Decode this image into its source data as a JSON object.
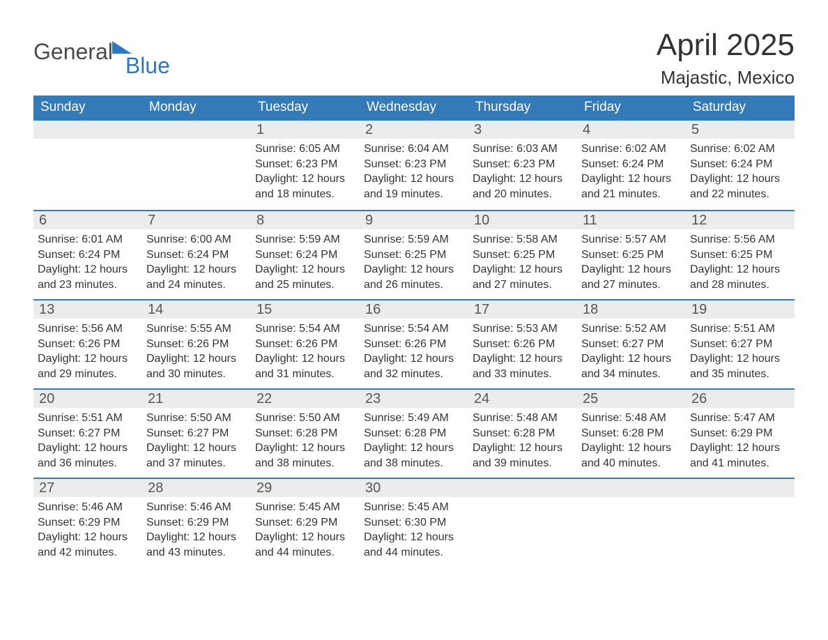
{
  "logo": {
    "text1": "General",
    "text2": "Blue",
    "icon_color": "#2f78bf"
  },
  "title": "April 2025",
  "subtitle": "Majastic, Mexico",
  "colors": {
    "header_bg": "#337ab7",
    "header_text": "#ffffff",
    "week_separator": "#337ab7",
    "daynum_bg": "#ececec",
    "body_text": "#333333",
    "logo_gray": "#4a4a4a",
    "logo_blue": "#2f78bf"
  },
  "day_headers": [
    "Sunday",
    "Monday",
    "Tuesday",
    "Wednesday",
    "Thursday",
    "Friday",
    "Saturday"
  ],
  "weeks": [
    [
      {
        "num": "",
        "sunrise": "",
        "sunset": "",
        "daylight": ""
      },
      {
        "num": "",
        "sunrise": "",
        "sunset": "",
        "daylight": ""
      },
      {
        "num": "1",
        "sunrise": "Sunrise: 6:05 AM",
        "sunset": "Sunset: 6:23 PM",
        "daylight": "Daylight: 12 hours and 18 minutes."
      },
      {
        "num": "2",
        "sunrise": "Sunrise: 6:04 AM",
        "sunset": "Sunset: 6:23 PM",
        "daylight": "Daylight: 12 hours and 19 minutes."
      },
      {
        "num": "3",
        "sunrise": "Sunrise: 6:03 AM",
        "sunset": "Sunset: 6:23 PM",
        "daylight": "Daylight: 12 hours and 20 minutes."
      },
      {
        "num": "4",
        "sunrise": "Sunrise: 6:02 AM",
        "sunset": "Sunset: 6:24 PM",
        "daylight": "Daylight: 12 hours and 21 minutes."
      },
      {
        "num": "5",
        "sunrise": "Sunrise: 6:02 AM",
        "sunset": "Sunset: 6:24 PM",
        "daylight": "Daylight: 12 hours and 22 minutes."
      }
    ],
    [
      {
        "num": "6",
        "sunrise": "Sunrise: 6:01 AM",
        "sunset": "Sunset: 6:24 PM",
        "daylight": "Daylight: 12 hours and 23 minutes."
      },
      {
        "num": "7",
        "sunrise": "Sunrise: 6:00 AM",
        "sunset": "Sunset: 6:24 PM",
        "daylight": "Daylight: 12 hours and 24 minutes."
      },
      {
        "num": "8",
        "sunrise": "Sunrise: 5:59 AM",
        "sunset": "Sunset: 6:24 PM",
        "daylight": "Daylight: 12 hours and 25 minutes."
      },
      {
        "num": "9",
        "sunrise": "Sunrise: 5:59 AM",
        "sunset": "Sunset: 6:25 PM",
        "daylight": "Daylight: 12 hours and 26 minutes."
      },
      {
        "num": "10",
        "sunrise": "Sunrise: 5:58 AM",
        "sunset": "Sunset: 6:25 PM",
        "daylight": "Daylight: 12 hours and 27 minutes."
      },
      {
        "num": "11",
        "sunrise": "Sunrise: 5:57 AM",
        "sunset": "Sunset: 6:25 PM",
        "daylight": "Daylight: 12 hours and 27 minutes."
      },
      {
        "num": "12",
        "sunrise": "Sunrise: 5:56 AM",
        "sunset": "Sunset: 6:25 PM",
        "daylight": "Daylight: 12 hours and 28 minutes."
      }
    ],
    [
      {
        "num": "13",
        "sunrise": "Sunrise: 5:56 AM",
        "sunset": "Sunset: 6:26 PM",
        "daylight": "Daylight: 12 hours and 29 minutes."
      },
      {
        "num": "14",
        "sunrise": "Sunrise: 5:55 AM",
        "sunset": "Sunset: 6:26 PM",
        "daylight": "Daylight: 12 hours and 30 minutes."
      },
      {
        "num": "15",
        "sunrise": "Sunrise: 5:54 AM",
        "sunset": "Sunset: 6:26 PM",
        "daylight": "Daylight: 12 hours and 31 minutes."
      },
      {
        "num": "16",
        "sunrise": "Sunrise: 5:54 AM",
        "sunset": "Sunset: 6:26 PM",
        "daylight": "Daylight: 12 hours and 32 minutes."
      },
      {
        "num": "17",
        "sunrise": "Sunrise: 5:53 AM",
        "sunset": "Sunset: 6:26 PM",
        "daylight": "Daylight: 12 hours and 33 minutes."
      },
      {
        "num": "18",
        "sunrise": "Sunrise: 5:52 AM",
        "sunset": "Sunset: 6:27 PM",
        "daylight": "Daylight: 12 hours and 34 minutes."
      },
      {
        "num": "19",
        "sunrise": "Sunrise: 5:51 AM",
        "sunset": "Sunset: 6:27 PM",
        "daylight": "Daylight: 12 hours and 35 minutes."
      }
    ],
    [
      {
        "num": "20",
        "sunrise": "Sunrise: 5:51 AM",
        "sunset": "Sunset: 6:27 PM",
        "daylight": "Daylight: 12 hours and 36 minutes."
      },
      {
        "num": "21",
        "sunrise": "Sunrise: 5:50 AM",
        "sunset": "Sunset: 6:27 PM",
        "daylight": "Daylight: 12 hours and 37 minutes."
      },
      {
        "num": "22",
        "sunrise": "Sunrise: 5:50 AM",
        "sunset": "Sunset: 6:28 PM",
        "daylight": "Daylight: 12 hours and 38 minutes."
      },
      {
        "num": "23",
        "sunrise": "Sunrise: 5:49 AM",
        "sunset": "Sunset: 6:28 PM",
        "daylight": "Daylight: 12 hours and 38 minutes."
      },
      {
        "num": "24",
        "sunrise": "Sunrise: 5:48 AM",
        "sunset": "Sunset: 6:28 PM",
        "daylight": "Daylight: 12 hours and 39 minutes."
      },
      {
        "num": "25",
        "sunrise": "Sunrise: 5:48 AM",
        "sunset": "Sunset: 6:28 PM",
        "daylight": "Daylight: 12 hours and 40 minutes."
      },
      {
        "num": "26",
        "sunrise": "Sunrise: 5:47 AM",
        "sunset": "Sunset: 6:29 PM",
        "daylight": "Daylight: 12 hours and 41 minutes."
      }
    ],
    [
      {
        "num": "27",
        "sunrise": "Sunrise: 5:46 AM",
        "sunset": "Sunset: 6:29 PM",
        "daylight": "Daylight: 12 hours and 42 minutes."
      },
      {
        "num": "28",
        "sunrise": "Sunrise: 5:46 AM",
        "sunset": "Sunset: 6:29 PM",
        "daylight": "Daylight: 12 hours and 43 minutes."
      },
      {
        "num": "29",
        "sunrise": "Sunrise: 5:45 AM",
        "sunset": "Sunset: 6:29 PM",
        "daylight": "Daylight: 12 hours and 44 minutes."
      },
      {
        "num": "30",
        "sunrise": "Sunrise: 5:45 AM",
        "sunset": "Sunset: 6:30 PM",
        "daylight": "Daylight: 12 hours and 44 minutes."
      },
      {
        "num": "",
        "sunrise": "",
        "sunset": "",
        "daylight": ""
      },
      {
        "num": "",
        "sunrise": "",
        "sunset": "",
        "daylight": ""
      },
      {
        "num": "",
        "sunrise": "",
        "sunset": "",
        "daylight": ""
      }
    ]
  ]
}
